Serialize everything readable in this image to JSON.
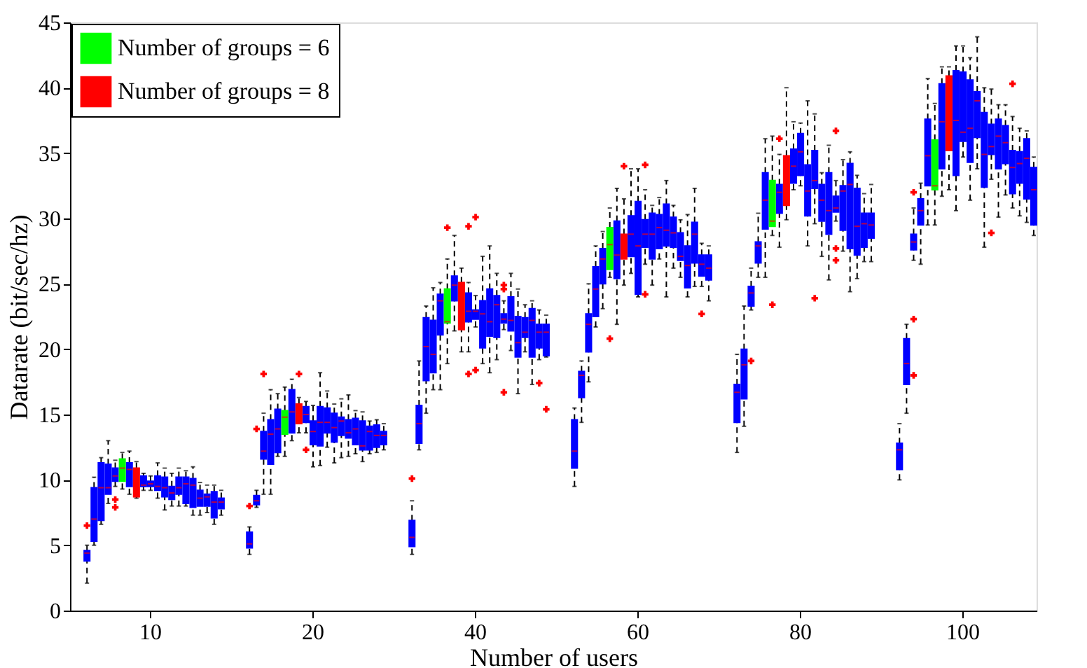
{
  "chart_data": {
    "type": "box",
    "xlabel": "Number of users",
    "ylabel": "Datarate (bit/sec/hz)",
    "categories": [
      null,
      null,
      null,
      null,
      null,
      null,
      null,
      null,
      null,
      "10",
      null,
      null,
      null,
      null,
      null,
      null,
      null,
      null,
      null,
      null,
      null,
      null,
      null,
      null,
      null,
      null,
      null,
      null,
      null,
      null,
      null,
      null,
      "20",
      null,
      null,
      null,
      null,
      null,
      null,
      null,
      null,
      null,
      null,
      null,
      null,
      null,
      null,
      null,
      null,
      null,
      null,
      null,
      null,
      null,
      null,
      "40",
      null,
      null,
      null,
      null,
      null,
      null,
      null,
      null,
      null,
      null,
      null,
      null,
      null,
      null,
      null,
      null,
      null,
      null,
      null,
      null,
      null,
      null,
      "60",
      null,
      null,
      null,
      null,
      null,
      null,
      null,
      null,
      null,
      null,
      null,
      null,
      null,
      null,
      null,
      null,
      null,
      null,
      null,
      null,
      null,
      null,
      "80",
      null,
      null,
      null,
      null,
      null,
      null,
      null,
      null,
      null,
      null,
      null,
      null,
      null,
      null,
      null,
      null,
      null,
      null,
      null,
      null,
      null,
      null,
      "100",
      null,
      null,
      null,
      null,
      null,
      null,
      null,
      null,
      null,
      null
    ],
    "ylim": [
      0,
      45
    ],
    "yticks": [
      0,
      5,
      10,
      15,
      20,
      25,
      30,
      35,
      40,
      45
    ],
    "grid": false,
    "legend": "top left",
    "marker": "cross",
    "series": [
      {
        "color": "#0000ff",
        "boxes": [
          {
            "low": 2.1,
            "q1": 3.8,
            "median": 4.4,
            "q3": 4.6,
            "high": 5.0,
            "outliers": [
              6.5
            ]
          },
          {
            "low": 5.0,
            "q1": 5.3,
            "median": 7.0,
            "q3": 9.4,
            "high": 10.2
          },
          {
            "low": 6.6,
            "q1": 6.9,
            "median": 9.4,
            "q3": 11.3,
            "high": 11.7
          },
          {
            "low": 8.2,
            "q1": 8.9,
            "median": 9.4,
            "q3": 11.2,
            "high": 13.0
          },
          {
            "low": 9.5,
            "q1": 9.9,
            "median": 10.3,
            "q3": 10.9,
            "high": 11.5,
            "outliers": [
              8.5,
              7.9
            ]
          },
          null,
          {
            "low": 8.9,
            "q1": 9.5,
            "median": 10.8,
            "q3": 11.3,
            "high": 12.2
          },
          null,
          {
            "low": 9.2,
            "q1": 9.5,
            "median": 9.6,
            "q3": 10.3,
            "high": 10.5
          },
          {
            "low": 9.2,
            "q1": 9.5,
            "median": 9.7,
            "q3": 9.9,
            "high": 10.3
          },
          {
            "low": 8.6,
            "q1": 9.2,
            "median": 9.5,
            "q3": 10.3,
            "high": 11.3
          },
          {
            "low": 7.7,
            "q1": 8.7,
            "median": 9.4,
            "q3": 10.2,
            "high": 10.9
          },
          {
            "low": 8.0,
            "q1": 8.5,
            "median": 9.0,
            "q3": 9.5,
            "high": 10.5
          },
          {
            "low": 8.0,
            "q1": 8.9,
            "median": 9.4,
            "q3": 10.2,
            "high": 10.9
          },
          {
            "low": 8.0,
            "q1": 8.2,
            "median": 9.7,
            "q3": 10.2,
            "high": 10.7
          },
          {
            "low": 7.3,
            "q1": 7.9,
            "median": 9.6,
            "q3": 10.1,
            "high": 11.0
          },
          {
            "low": 7.3,
            "q1": 8.0,
            "median": 8.6,
            "q3": 9.2,
            "high": 9.8
          },
          {
            "low": 7.5,
            "q1": 8.0,
            "median": 8.7,
            "q3": 8.9,
            "high": 9.6
          },
          {
            "low": 6.6,
            "q1": 7.1,
            "median": 8.3,
            "q3": 9.1,
            "high": 9.6
          },
          {
            "low": 7.3,
            "q1": 7.8,
            "median": 8.3,
            "q3": 8.6,
            "high": 9.2
          },
          null,
          null,
          null,
          {
            "low": 4.3,
            "q1": 4.8,
            "median": 5.1,
            "q3": 6.0,
            "high": 6.4,
            "outliers": [
              8.0
            ]
          },
          {
            "low": 7.9,
            "q1": 8.1,
            "median": 8.4,
            "q3": 8.8,
            "high": 9.2,
            "outliers": [
              13.9
            ]
          },
          {
            "low": 8.9,
            "q1": 11.6,
            "median": 12.2,
            "q3": 13.7,
            "high": 15.1,
            "outliers": [
              18.1
            ]
          },
          {
            "low": 8.9,
            "q1": 11.2,
            "median": 13.5,
            "q3": 14.6,
            "high": 16.9
          },
          {
            "low": 11.8,
            "q1": 12.1,
            "median": 13.9,
            "q3": 15.4,
            "high": 16.6
          },
          null,
          {
            "low": 13.0,
            "q1": 13.6,
            "median": 15.2,
            "q3": 16.9,
            "high": 17.7
          },
          null,
          {
            "low": 13.6,
            "q1": 14.4,
            "median": 15.0,
            "q3": 15.6,
            "high": 16.0,
            "outliers": [
              12.3
            ]
          },
          {
            "low": 11.0,
            "q1": 12.7,
            "median": 13.7,
            "q3": 14.5,
            "high": 15.7
          },
          {
            "low": 11.1,
            "q1": 12.6,
            "median": 14.4,
            "q3": 15.6,
            "high": 18.2
          },
          {
            "low": 12.5,
            "q1": 13.6,
            "median": 14.4,
            "q3": 15.5,
            "high": 16.8
          },
          {
            "low": 11.3,
            "q1": 12.9,
            "median": 14.0,
            "q3": 15.1,
            "high": 15.8
          },
          {
            "low": 11.7,
            "q1": 13.4,
            "median": 14.5,
            "q3": 14.8,
            "high": 16.2
          },
          {
            "low": 11.8,
            "q1": 13.2,
            "median": 13.6,
            "q3": 14.6,
            "high": 16.5
          },
          {
            "low": 12.0,
            "q1": 12.7,
            "median": 13.9,
            "q3": 14.7,
            "high": 15.3
          },
          {
            "low": 11.4,
            "q1": 12.3,
            "median": 12.6,
            "q3": 14.5,
            "high": 15.2
          },
          {
            "low": 12.0,
            "q1": 12.3,
            "median": 13.7,
            "q3": 14.1,
            "high": 14.5
          },
          {
            "low": 12.1,
            "q1": 12.5,
            "median": 13.4,
            "q3": 14.2,
            "high": 14.6
          },
          {
            "low": 12.3,
            "q1": 12.7,
            "median": 13.4,
            "q3": 13.7,
            "high": 14.3
          },
          null,
          null,
          null,
          {
            "low": 4.3,
            "q1": 4.9,
            "median": 5.6,
            "q3": 6.9,
            "high": 8.4,
            "outliers": [
              10.1
            ]
          },
          {
            "low": 12.3,
            "q1": 12.8,
            "median": 14.3,
            "q3": 15.7,
            "high": 19.1
          },
          {
            "low": 15.1,
            "q1": 17.6,
            "median": 20.2,
            "q3": 22.4,
            "high": 23.3
          },
          {
            "low": 16.9,
            "q1": 18.2,
            "median": 19.6,
            "q3": 22.2,
            "high": 24.7
          },
          {
            "low": 16.9,
            "q1": 21.1,
            "median": 23.7,
            "q3": 24.2,
            "high": 25.1
          },
          null,
          {
            "low": 21.4,
            "q1": 23.7,
            "median": 24.9,
            "q3": 25.6,
            "high": 28.7
          },
          null,
          {
            "low": 19.8,
            "q1": 22.1,
            "median": 22.9,
            "q3": 24.3,
            "high": 25.1,
            "outliers": [
              29.4,
              18.1
            ]
          },
          {
            "low": 21.7,
            "q1": 22.3,
            "median": 22.9,
            "q3": 23.0,
            "high": 24.1,
            "outliers": [
              30.1,
              18.4
            ]
          },
          {
            "low": 18.9,
            "q1": 20.1,
            "median": 22.7,
            "q3": 23.7,
            "high": 27.1
          },
          {
            "low": 18.2,
            "q1": 21.0,
            "median": 22.1,
            "q3": 24.6,
            "high": 27.9
          },
          {
            "low": 19.2,
            "q1": 20.9,
            "median": 23.4,
            "q3": 24.1,
            "high": 25.8
          },
          {
            "low": 21.5,
            "q1": 22.0,
            "median": 22.3,
            "q3": 22.7,
            "high": 23.7,
            "outliers": [
              24.9,
              24.6,
              16.7
            ]
          },
          {
            "low": 19.9,
            "q1": 21.4,
            "median": 22.2,
            "q3": 24.0,
            "high": 25.8
          },
          {
            "low": 16.6,
            "q1": 19.4,
            "median": 20.5,
            "q3": 22.5,
            "high": 24.6
          },
          {
            "low": 19.8,
            "q1": 20.9,
            "median": 21.3,
            "q3": 22.4,
            "high": 23.4
          },
          {
            "low": 17.3,
            "q1": 19.4,
            "median": 22.2,
            "q3": 23.1,
            "high": 23.7
          },
          {
            "low": 19.2,
            "q1": 20.1,
            "median": 21.3,
            "q3": 21.9,
            "high": 23.0,
            "outliers": [
              17.4
            ]
          },
          {
            "low": 19.4,
            "q1": 19.5,
            "median": 21.3,
            "q3": 21.9,
            "high": 22.6,
            "outliers": [
              15.4
            ]
          },
          null,
          null,
          null,
          {
            "low": 9.5,
            "q1": 10.9,
            "median": 12.2,
            "q3": 14.6,
            "high": 15.5
          },
          {
            "low": 14.4,
            "q1": 16.3,
            "median": 18.0,
            "q3": 18.3,
            "high": 19.1
          },
          {
            "low": 17.5,
            "q1": 19.8,
            "median": 21.9,
            "q3": 22.7,
            "high": 25.0
          },
          {
            "low": 21.7,
            "q1": 22.5,
            "median": 24.6,
            "q3": 26.3,
            "high": 27.9
          },
          {
            "low": 23.1,
            "q1": 25.0,
            "median": 26.9,
            "q3": 27.7,
            "high": 29.0
          },
          null,
          {
            "low": 21.9,
            "q1": 25.4,
            "median": 27.2,
            "q3": 29.8,
            "high": 32.3
          },
          null,
          {
            "low": 25.8,
            "q1": 27.1,
            "median": 28.8,
            "q3": 30.2,
            "high": 33.8
          },
          {
            "low": 24.0,
            "q1": 24.2,
            "median": 27.9,
            "q3": 31.3,
            "high": 33.8
          },
          {
            "low": 26.5,
            "q1": 27.8,
            "median": 28.8,
            "q3": 29.9,
            "high": 32.2,
            "outliers": [
              34.1,
              24.2
            ]
          },
          {
            "low": 24.9,
            "q1": 26.9,
            "median": 28.8,
            "q3": 30.4,
            "high": 31.0
          },
          {
            "low": 26.9,
            "q1": 27.7,
            "median": 29.3,
            "q3": 30.3,
            "high": 31.6
          },
          {
            "low": 24.0,
            "q1": 27.9,
            "median": 29.1,
            "q3": 31.1,
            "high": 32.9
          },
          {
            "low": 26.2,
            "q1": 27.8,
            "median": 28.9,
            "q3": 30.1,
            "high": 31.0
          },
          {
            "low": 25.5,
            "q1": 26.8,
            "median": 27.1,
            "q3": 28.9,
            "high": 29.9
          },
          {
            "low": 24.0,
            "q1": 24.7,
            "median": 26.4,
            "q3": 27.9,
            "high": 30.3
          },
          {
            "low": 24.8,
            "q1": 26.6,
            "median": 28.8,
            "q3": 29.7,
            "high": 32.3
          },
          {
            "low": 24.8,
            "q1": 25.6,
            "median": 26.5,
            "q3": 27.2,
            "high": 28.1,
            "outliers": [
              22.7
            ]
          },
          {
            "low": 23.7,
            "q1": 25.3,
            "median": 26.2,
            "q3": 27.2,
            "high": 27.9
          },
          null,
          null,
          null,
          {
            "low": 12.1,
            "q1": 14.4,
            "median": 16.7,
            "q3": 17.3,
            "high": 19.6
          },
          {
            "low": 14.1,
            "q1": 16.2,
            "median": 18.8,
            "q3": 20.0,
            "high": 23.3
          },
          {
            "low": 23.0,
            "q1": 23.3,
            "median": 24.3,
            "q3": 24.8,
            "high": 26.2,
            "outliers": [
              19.1
            ]
          },
          {
            "low": 25.5,
            "q1": 26.6,
            "median": 27.9,
            "q3": 28.2,
            "high": 30.4
          },
          {
            "low": 25.5,
            "q1": 29.2,
            "median": 31.4,
            "q3": 33.5,
            "high": 36.1
          },
          null,
          {
            "low": 27.8,
            "q1": 30.4,
            "median": 32.0,
            "q3": 32.6,
            "high": 34.9,
            "outliers": [
              36.1
            ]
          },
          null,
          {
            "low": 32.2,
            "q1": 32.7,
            "median": 34.0,
            "q3": 35.3,
            "high": 37.4
          },
          {
            "low": 32.5,
            "q1": 33.3,
            "median": 35.1,
            "q3": 36.5,
            "high": 37.3
          },
          {
            "low": 27.9,
            "q1": 30.2,
            "median": 32.1,
            "q3": 34.1,
            "high": 39.0
          },
          {
            "low": 29.6,
            "q1": 32.3,
            "median": 32.9,
            "q3": 35.2,
            "high": 38.0,
            "outliers": [
              23.9
            ]
          },
          {
            "low": 27.1,
            "q1": 29.8,
            "median": 31.4,
            "q3": 32.6,
            "high": 33.5
          },
          {
            "low": 25.3,
            "q1": 28.8,
            "median": 30.6,
            "q3": 33.5,
            "high": 35.6
          },
          {
            "low": 29.8,
            "q1": 30.5,
            "median": 30.8,
            "q3": 31.7,
            "high": 32.9,
            "outliers": [
              36.7,
              27.7,
              26.8
            ]
          },
          {
            "low": 27.5,
            "q1": 29.1,
            "median": 32.1,
            "q3": 32.5,
            "high": 34.5
          },
          {
            "low": 24.4,
            "q1": 27.7,
            "median": 32.6,
            "q3": 34.2,
            "high": 35.1
          },
          {
            "low": 25.4,
            "q1": 27.2,
            "median": 29.4,
            "q3": 32.3,
            "high": 33.3
          },
          {
            "low": 26.7,
            "q1": 27.8,
            "median": 29.6,
            "q3": 30.4,
            "high": 31.9
          },
          {
            "low": 26.7,
            "q1": 28.5,
            "median": 29.5,
            "q3": 30.4,
            "high": 32.6
          },
          null,
          null,
          null,
          {
            "low": 10.0,
            "q1": 10.8,
            "median": 12.3,
            "q3": 12.8,
            "high": 14.3
          },
          {
            "low": 15.1,
            "q1": 17.3,
            "median": 18.9,
            "q3": 20.8,
            "high": 21.9
          },
          {
            "low": 26.8,
            "q1": 27.6,
            "median": 28.2,
            "q3": 28.8,
            "high": 30.8,
            "outliers": [
              32.0,
              22.3,
              18.0
            ]
          },
          {
            "low": 26.5,
            "q1": 29.5,
            "median": 30.6,
            "q3": 31.5,
            "high": 32.7
          },
          {
            "low": 29.5,
            "q1": 32.5,
            "median": 34.8,
            "q3": 37.6,
            "high": 40.7
          },
          null,
          {
            "low": 31.7,
            "q1": 33.8,
            "median": 37.4,
            "q3": 40.3,
            "high": 41.6
          },
          null,
          {
            "low": 30.6,
            "q1": 33.3,
            "median": 37.5,
            "q3": 41.3,
            "high": 43.2
          },
          {
            "low": 34.7,
            "q1": 35.9,
            "median": 36.6,
            "q3": 41.2,
            "high": 43.2
          },
          {
            "low": 31.4,
            "q1": 34.3,
            "median": 36.9,
            "q3": 40.6,
            "high": 42.3
          },
          {
            "low": 33.8,
            "q1": 36.2,
            "median": 39.0,
            "q3": 39.7,
            "high": 43.9
          },
          {
            "low": 27.8,
            "q1": 32.4,
            "median": 34.9,
            "q3": 38.1,
            "high": 40.0
          },
          {
            "low": 33.0,
            "q1": 34.9,
            "median": 35.5,
            "q3": 37.2,
            "high": 39.9,
            "outliers": [
              28.9
            ]
          },
          {
            "low": 30.1,
            "q1": 33.8,
            "median": 36.3,
            "q3": 37.6,
            "high": 38.7
          },
          {
            "low": 31.8,
            "q1": 34.2,
            "median": 35.8,
            "q3": 37.1,
            "high": 38.7
          },
          {
            "low": 30.8,
            "q1": 31.9,
            "median": 33.9,
            "q3": 35.2,
            "high": 37.8,
            "outliers": [
              40.3
            ]
          },
          {
            "low": 30.2,
            "q1": 32.7,
            "median": 34.2,
            "q3": 35.1,
            "high": 36.9
          },
          {
            "low": 29.7,
            "q1": 31.5,
            "median": 34.6,
            "q3": 36.1,
            "high": 36.7
          },
          {
            "low": 28.7,
            "q1": 29.5,
            "median": 32.2,
            "q3": 33.9,
            "high": 34.7
          }
        ]
      },
      {
        "name": "Number of groups = 6",
        "color": "#00ff00",
        "boxes": [
          null,
          null,
          null,
          null,
          null,
          {
            "low": 9.3,
            "q1": 9.9,
            "median": 10.9,
            "q3": 11.6,
            "high": 12.1
          },
          null,
          null,
          null,
          null,
          null,
          null,
          null,
          null,
          null,
          null,
          null,
          null,
          null,
          null,
          null,
          null,
          null,
          null,
          null,
          null,
          null,
          null,
          {
            "low": 11.8,
            "q1": 13.5,
            "median": 14.8,
            "q3": 15.3,
            "high": 17.1
          },
          null,
          null,
          null,
          null,
          null,
          null,
          null,
          null,
          null,
          null,
          null,
          null,
          null,
          null,
          null,
          null,
          null,
          null,
          null,
          null,
          null,
          null,
          {
            "low": 18.9,
            "q1": 22.0,
            "median": 22.1,
            "q3": 24.6,
            "high": 26.9,
            "outliers": [
              29.3
            ]
          },
          null,
          null,
          null,
          null,
          null,
          null,
          null,
          null,
          null,
          null,
          null,
          null,
          null,
          null,
          null,
          null,
          null,
          null,
          null,
          null,
          null,
          null,
          {
            "low": 25.5,
            "q1": 26.1,
            "median": 28.0,
            "q3": 29.3,
            "high": 30.8,
            "outliers": [
              20.8
            ]
          },
          null,
          null,
          null,
          null,
          null,
          null,
          null,
          null,
          null,
          null,
          null,
          null,
          null,
          null,
          null,
          null,
          null,
          null,
          null,
          null,
          null,
          null,
          {
            "low": 28.7,
            "q1": 29.4,
            "median": 29.8,
            "q3": 32.9,
            "high": 36.3,
            "outliers": [
              23.4
            ]
          },
          null,
          null,
          null,
          null,
          null,
          null,
          null,
          null,
          null,
          null,
          null,
          null,
          null,
          null,
          null,
          null,
          null,
          null,
          null,
          null,
          null,
          null,
          {
            "low": 29.5,
            "q1": 32.2,
            "median": 32.5,
            "q3": 36.0,
            "high": 38.8
          },
          null,
          null,
          null,
          null,
          null,
          null,
          null,
          null,
          null,
          null,
          null,
          null,
          null,
          null
        ]
      },
      {
        "name": "Number of groups = 8",
        "color": "#ff0000",
        "boxes": [
          null,
          null,
          null,
          null,
          null,
          null,
          null,
          {
            "low": 8.6,
            "q1": 8.7,
            "median": 10.8,
            "q3": 10.9,
            "high": 11.4
          },
          null,
          null,
          null,
          null,
          null,
          null,
          null,
          null,
          null,
          null,
          null,
          null,
          null,
          null,
          null,
          null,
          null,
          null,
          null,
          null,
          null,
          null,
          {
            "low": 13.6,
            "q1": 14.3,
            "median": 15.3,
            "q3": 15.8,
            "high": 16.3,
            "outliers": [
              18.1
            ]
          },
          null,
          null,
          null,
          null,
          null,
          null,
          null,
          null,
          null,
          null,
          null,
          null,
          null,
          null,
          null,
          null,
          null,
          null,
          null,
          null,
          null,
          null,
          {
            "low": 19.8,
            "q1": 21.5,
            "median": 24.7,
            "q3": 25.1,
            "high": 26.2
          },
          null,
          null,
          null,
          null,
          null,
          null,
          null,
          null,
          null,
          null,
          null,
          null,
          null,
          null,
          null,
          null,
          null,
          null,
          null,
          null,
          null,
          null,
          {
            "low": 24.9,
            "q1": 26.9,
            "median": 27.9,
            "q3": 28.8,
            "high": 31.5,
            "outliers": [
              34.0
            ]
          },
          null,
          null,
          null,
          null,
          null,
          null,
          null,
          null,
          null,
          null,
          null,
          null,
          null,
          null,
          null,
          null,
          null,
          null,
          null,
          null,
          null,
          null,
          {
            "low": 29.9,
            "q1": 31.0,
            "median": 33.9,
            "q3": 34.8,
            "high": 40.0
          },
          null,
          null,
          null,
          null,
          null,
          null,
          null,
          null,
          null,
          null,
          null,
          null,
          null,
          null,
          null,
          null,
          null,
          null,
          null,
          null,
          null,
          null,
          {
            "low": 32.2,
            "q1": 35.2,
            "median": 40.5,
            "q3": 40.9,
            "high": 41.6
          },
          null,
          null,
          null,
          null,
          null,
          null,
          null,
          null,
          null,
          null,
          null,
          null
        ]
      }
    ]
  }
}
